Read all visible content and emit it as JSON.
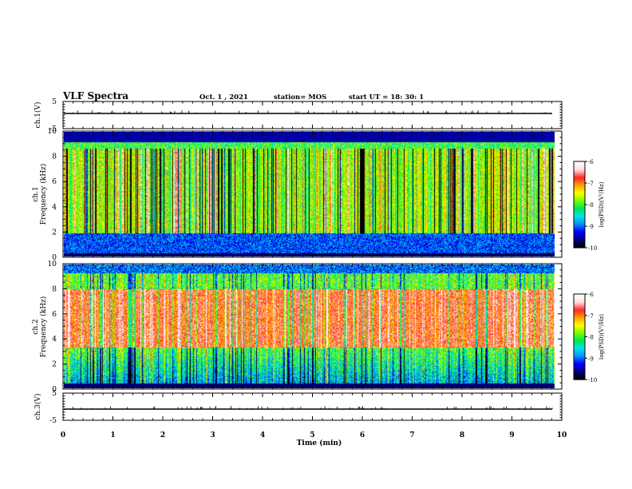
{
  "header": {
    "title": "VLF Spectra",
    "date": "Oct. 1 , 2021",
    "station": "station= MOS",
    "start": "start UT = 18: 30: 1"
  },
  "chart_data": {
    "type": "heatmap",
    "x": {
      "label": "Time (min)",
      "range": [
        0,
        10
      ],
      "ticks": [
        0,
        1,
        2,
        3,
        4,
        5,
        6,
        7,
        8,
        9,
        10
      ],
      "data_end": 9.85
    },
    "panels": [
      {
        "kind": "waveform",
        "ylabel": "ch.1(V)",
        "yrange": [
          -5,
          5
        ],
        "yticks": [
          5,
          -5
        ],
        "baseline": 0
      },
      {
        "kind": "spectrogram",
        "ylabel_top": "ch.1",
        "ylabel": "Frequency (kHz)",
        "yrange": [
          0,
          10
        ],
        "yticks": [
          0,
          2,
          4,
          6,
          8,
          10
        ],
        "dominant_level": -7.8,
        "colorbar": {
          "label": "log(PSD)(V²/Hz)",
          "range": [
            -10,
            -6
          ],
          "ticks": [
            -6,
            -7,
            -8,
            -9,
            -10
          ]
        }
      },
      {
        "kind": "spectrogram",
        "ylabel_top": "ch.2",
        "ylabel": "Frequency (kHz)",
        "yrange": [
          0,
          10
        ],
        "yticks": [
          0,
          2,
          4,
          6,
          8,
          10
        ],
        "dominant_level": -6.8,
        "colorbar": {
          "label": "log(PSD)(V²/Hz)",
          "range": [
            -10,
            -6
          ],
          "ticks": [
            -6,
            -7,
            -8,
            -9,
            -10
          ]
        }
      },
      {
        "kind": "waveform",
        "ylabel": "ch.3(V)",
        "yrange": [
          -5,
          5
        ],
        "yticks": [
          5,
          -5
        ],
        "baseline": 0
      }
    ],
    "colorscale": [
      "#000000",
      "#00008c",
      "#0000ff",
      "#0096ff",
      "#00e6e6",
      "#00e650",
      "#78ff00",
      "#ffff00",
      "#ffa000",
      "#ff2828",
      "#ffdcdc",
      "#ffffff"
    ]
  }
}
